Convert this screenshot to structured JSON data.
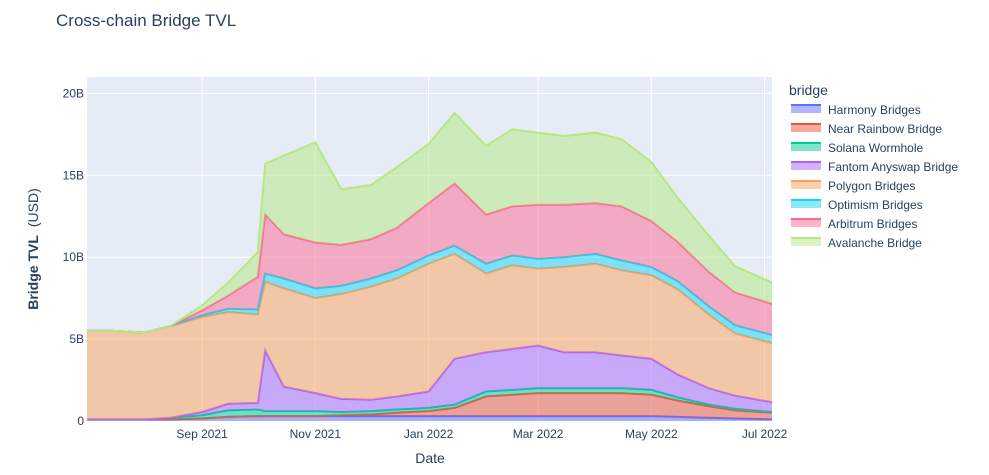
{
  "chart_data": {
    "type": "area",
    "stacked": true,
    "title": "Cross-chain Bridge TVL",
    "xlabel": "Date",
    "ylabel_bold": "Bridge TVL",
    "ylabel_unit": "(USD)",
    "ylim": [
      0,
      21000000000
    ],
    "xlim": [
      "2021-07-01",
      "2022-07-05"
    ],
    "grid": true,
    "legend_title": "bridge",
    "legend_position": "right",
    "x_ticks": [
      {
        "date": "2021-09-01",
        "label": "Sep 2021"
      },
      {
        "date": "2021-11-01",
        "label": "Nov 2021"
      },
      {
        "date": "2022-01-01",
        "label": "Jan 2022"
      },
      {
        "date": "2022-03-01",
        "label": "Mar 2022"
      },
      {
        "date": "2022-05-01",
        "label": "May 2022"
      },
      {
        "date": "2022-07-01",
        "label": "Jul 2022"
      }
    ],
    "y_ticks": [
      {
        "value": 0,
        "label": "0"
      },
      {
        "value": 5000000000,
        "label": "5B"
      },
      {
        "value": 10000000000,
        "label": "10B"
      },
      {
        "value": 15000000000,
        "label": "15B"
      },
      {
        "value": 20000000000,
        "label": "20B"
      }
    ],
    "x": [
      "2021-07-01",
      "2021-07-15",
      "2021-08-01",
      "2021-08-15",
      "2021-09-01",
      "2021-09-15",
      "2021-10-01",
      "2021-10-05",
      "2021-10-15",
      "2021-11-01",
      "2021-11-15",
      "2021-12-01",
      "2021-12-15",
      "2022-01-01",
      "2022-01-15",
      "2022-02-01",
      "2022-02-15",
      "2022-03-01",
      "2022-03-15",
      "2022-04-01",
      "2022-04-15",
      "2022-05-01",
      "2022-05-15",
      "2022-06-01",
      "2022-06-15",
      "2022-07-05"
    ],
    "series": [
      {
        "name": "Harmony Bridges",
        "color": "#636efa",
        "values": [
          0.1,
          0.1,
          0.1,
          0.1,
          0.15,
          0.25,
          0.3,
          0.3,
          0.3,
          0.3,
          0.3,
          0.3,
          0.3,
          0.3,
          0.3,
          0.3,
          0.3,
          0.3,
          0.3,
          0.3,
          0.3,
          0.3,
          0.25,
          0.2,
          0.15,
          0.1
        ]
      },
      {
        "name": "Near Rainbow Bridge",
        "color": "#ef553b",
        "values": [
          0,
          0,
          0,
          0,
          0,
          0,
          0,
          0,
          0,
          0,
          0.05,
          0.1,
          0.2,
          0.3,
          0.5,
          1.2,
          1.3,
          1.4,
          1.4,
          1.4,
          1.4,
          1.3,
          1.0,
          0.7,
          0.5,
          0.4
        ]
      },
      {
        "name": "Solana Wormhole",
        "color": "#00cc96",
        "values": [
          0,
          0,
          0,
          0.1,
          0.2,
          0.4,
          0.4,
          0.3,
          0.3,
          0.3,
          0.2,
          0.2,
          0.2,
          0.2,
          0.2,
          0.3,
          0.3,
          0.3,
          0.3,
          0.3,
          0.3,
          0.3,
          0.2,
          0.1,
          0.1,
          0.05
        ]
      },
      {
        "name": "Fantom Anyswap Bridge",
        "color": "#ab63fa",
        "values": [
          0,
          0,
          0,
          0,
          0.2,
          0.4,
          0.4,
          3.7,
          1.5,
          1.1,
          0.8,
          0.7,
          0.8,
          1.0,
          2.8,
          2.4,
          2.5,
          2.6,
          2.2,
          2.2,
          2.0,
          1.9,
          1.4,
          1.0,
          0.8,
          0.6
        ]
      },
      {
        "name": "Polygon Bridges",
        "color": "#ffa15a",
        "values": [
          5.4,
          5.4,
          5.3,
          5.6,
          5.8,
          5.6,
          5.4,
          4.2,
          6.0,
          5.8,
          6.4,
          6.9,
          7.2,
          7.8,
          6.4,
          4.8,
          5.1,
          4.7,
          5.2,
          5.4,
          5.2,
          5.1,
          5.2,
          4.5,
          3.8,
          3.6
        ]
      },
      {
        "name": "Optimism Bridges",
        "color": "#19d3f3",
        "values": [
          0,
          0,
          0,
          0,
          0.1,
          0.2,
          0.3,
          0.5,
          0.6,
          0.6,
          0.5,
          0.5,
          0.5,
          0.5,
          0.5,
          0.6,
          0.6,
          0.6,
          0.6,
          0.6,
          0.6,
          0.5,
          0.5,
          0.5,
          0.5,
          0.5
        ]
      },
      {
        "name": "Arbitrum Bridges",
        "color": "#ff6692",
        "values": [
          0,
          0,
          0,
          0,
          0.3,
          0.8,
          2.0,
          3.6,
          2.7,
          2.8,
          2.5,
          2.4,
          2.6,
          3.2,
          3.8,
          3.0,
          3.0,
          3.3,
          3.2,
          3.1,
          3.3,
          2.8,
          2.4,
          2.1,
          2.0,
          1.9
        ]
      },
      {
        "name": "Avalanche Bridge",
        "color": "#b6e880",
        "values": [
          0,
          0,
          0,
          0,
          0.3,
          0.8,
          1.5,
          3.1,
          4.8,
          6.1,
          3.4,
          3.3,
          3.7,
          3.6,
          4.3,
          4.2,
          4.7,
          4.4,
          4.2,
          4.3,
          4.1,
          3.6,
          2.7,
          2.2,
          1.6,
          1.3
        ]
      }
    ],
    "values_unit": "billions USD"
  }
}
